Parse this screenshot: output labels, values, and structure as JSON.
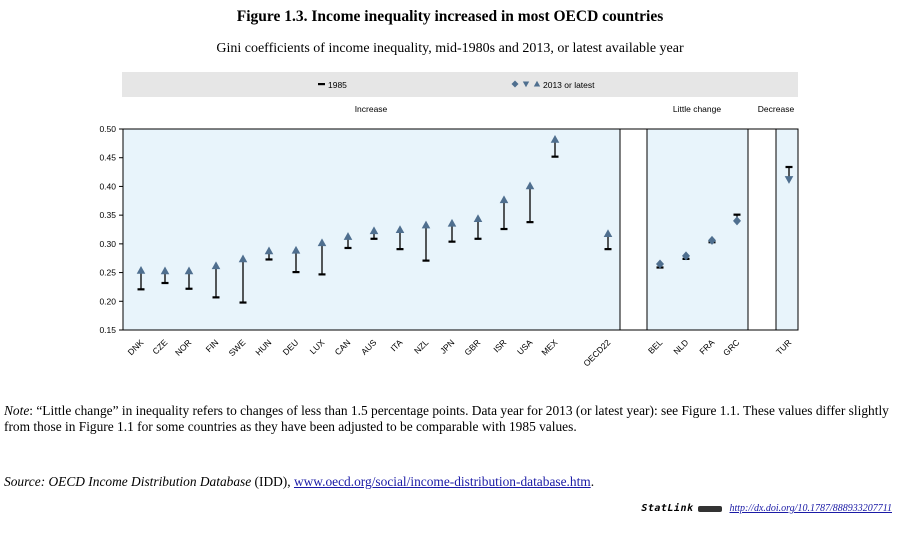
{
  "figure": {
    "title": "Figure 1.3. Income inequality increased in most OECD countries",
    "subtitle": "Gini coefficients of income inequality, mid-1980s and 2013, or latest available year"
  },
  "chart_data": {
    "type": "dot-range",
    "legend": {
      "item_1985": "1985",
      "item_2013": "2013 or latest"
    },
    "ylim": [
      0.15,
      0.5
    ],
    "yticks": [
      "0.15",
      "0.20",
      "0.25",
      "0.30",
      "0.35",
      "0.40",
      "0.45",
      "0.50"
    ],
    "groups": [
      {
        "label": "Increase",
        "countries": [
          {
            "code": "DNK",
            "v1985": 0.221,
            "v2013": 0.254
          },
          {
            "code": "CZE",
            "v1985": 0.232,
            "v2013": 0.253
          },
          {
            "code": "NOR",
            "v1985": 0.222,
            "v2013": 0.253
          },
          {
            "code": "FIN",
            "v1985": 0.207,
            "v2013": 0.262
          },
          {
            "code": "SWE",
            "v1985": 0.198,
            "v2013": 0.274
          },
          {
            "code": "HUN",
            "v1985": 0.273,
            "v2013": 0.288
          },
          {
            "code": "DEU",
            "v1985": 0.251,
            "v2013": 0.289
          },
          {
            "code": "LUX",
            "v1985": 0.247,
            "v2013": 0.302
          },
          {
            "code": "CAN",
            "v1985": 0.293,
            "v2013": 0.313
          },
          {
            "code": "AUS",
            "v1985": 0.309,
            "v2013": 0.323
          },
          {
            "code": "ITA",
            "v1985": 0.291,
            "v2013": 0.325
          },
          {
            "code": "NZL",
            "v1985": 0.271,
            "v2013": 0.333
          },
          {
            "code": "JPN",
            "v1985": 0.304,
            "v2013": 0.336
          },
          {
            "code": "GBR",
            "v1985": 0.309,
            "v2013": 0.344
          },
          {
            "code": "ISR",
            "v1985": 0.326,
            "v2013": 0.377
          },
          {
            "code": "USA",
            "v1985": 0.338,
            "v2013": 0.401
          },
          {
            "code": "MEX",
            "v1985": 0.452,
            "v2013": 0.482
          },
          {
            "code": "OECD22",
            "v1985": 0.291,
            "v2013": 0.318
          }
        ]
      },
      {
        "label": "Little change",
        "countries": [
          {
            "code": "BEL",
            "v1985": 0.259,
            "v2013": 0.265
          },
          {
            "code": "NLD",
            "v1985": 0.274,
            "v2013": 0.279
          },
          {
            "code": "FRA",
            "v1985": 0.303,
            "v2013": 0.306
          },
          {
            "code": "GRC",
            "v1985": 0.351,
            "v2013": 0.34
          }
        ]
      },
      {
        "label": "Decrease",
        "countries": [
          {
            "code": "TUR",
            "v1985": 0.434,
            "v2013": 0.412
          }
        ]
      }
    ],
    "colors": {
      "plot_bg": "#e8f4fb",
      "legend_bg": "#e6e6e6",
      "marker": "#4f6f8f",
      "whisker": "#000000"
    }
  },
  "note": {
    "label": "Note",
    "text": ": “Little change” in inequality refers to changes of less than 1.5 percentage points. Data year for 2013 (or latest year): see Figure 1.1. These values differ slightly from those in Figure 1.1 for some countries as they have been adjusted to be comparable with 1985 values."
  },
  "source": {
    "label": "Source",
    "italic_name": ": OECD Income Distribution Database",
    "abbrev": " (IDD), ",
    "link": "www.oecd.org/social/income-distribution-database.htm",
    "end": "."
  },
  "statlink": {
    "label": "StatLink",
    "url": "http://dx.doi.org/10.1787/888933207711"
  }
}
